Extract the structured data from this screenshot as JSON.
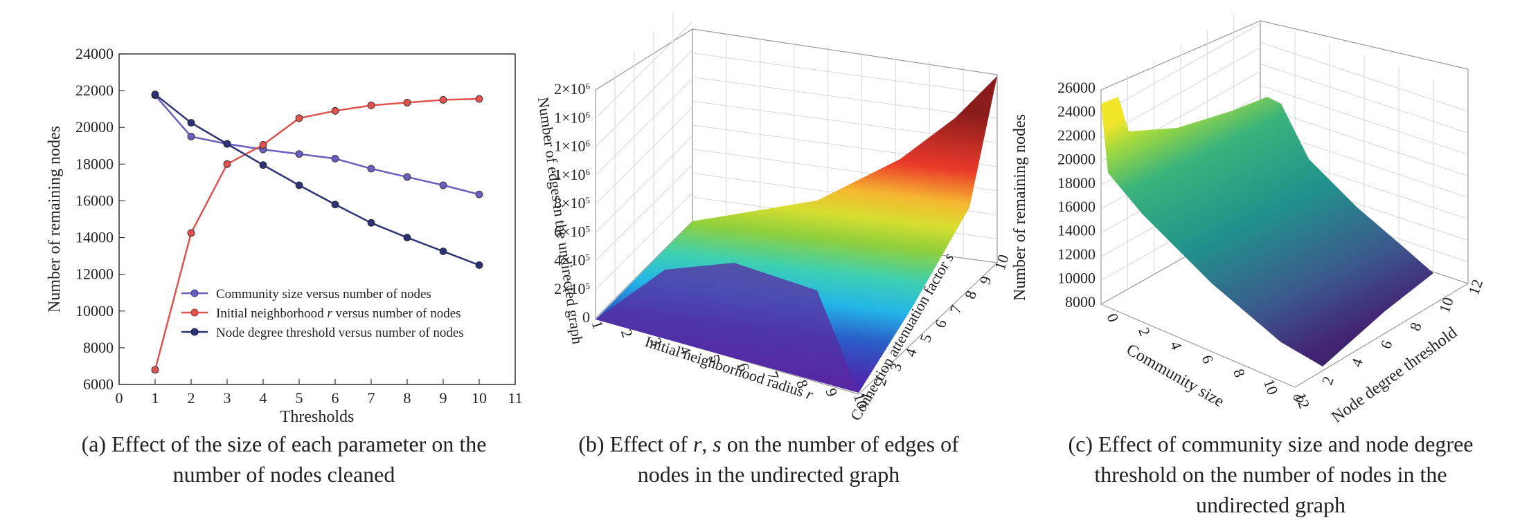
{
  "chart_data": [
    {
      "type": "line",
      "xlabel": "Thresholds",
      "ylabel": "Number of remaining nodes",
      "xlim": [
        0,
        11
      ],
      "ylim": [
        6000,
        24000
      ],
      "xticks": [
        "0",
        "1",
        "2",
        "3",
        "4",
        "5",
        "6",
        "7",
        "8",
        "9",
        "10",
        "11"
      ],
      "yticks": [
        "6000",
        "8000",
        "10000",
        "12000",
        "14000",
        "16000",
        "18000",
        "20000",
        "22000",
        "24000"
      ],
      "x": [
        1,
        2,
        3,
        4,
        5,
        6,
        7,
        8,
        9,
        10
      ],
      "series": [
        {
          "name": "Community size versus number of nodes",
          "color": "#6a5fbf",
          "values": [
            21750,
            19500,
            19100,
            18800,
            18550,
            18300,
            17750,
            17300,
            16850,
            16350
          ]
        },
        {
          "name_pre": "Initial neighborhood ",
          "name_var": "r",
          "name_post": " versus number of nodes",
          "color": "#e0524e",
          "values": [
            6800,
            14250,
            18000,
            19050,
            20500,
            20900,
            21200,
            21350,
            21500,
            21550
          ]
        },
        {
          "name": "Node degree threshold versus number of nodes",
          "color": "#2c3375",
          "values": [
            21800,
            20250,
            19100,
            17950,
            16850,
            15800,
            14800,
            14000,
            13250,
            12500
          ]
        }
      ],
      "legend_position": "lower-right",
      "caption": "(a) Effect of the size of each parameter on the number of nodes cleaned"
    },
    {
      "type": "surface3d",
      "xlabel_pre": "Initial neighborhood radius ",
      "xlabel_var": "r",
      "ylabel_pre": "Connection attenuation factor ",
      "ylabel_var": "s",
      "zlabel": "Number of edges in the undirected graph",
      "xticks": [
        "1",
        "2",
        "3",
        "4",
        "5",
        "6",
        "7",
        "8",
        "9",
        "10"
      ],
      "yticks": [
        "1",
        "2",
        "3",
        "4",
        "5",
        "6",
        "7",
        "8",
        "9",
        "10"
      ],
      "zticks": [
        {
          "b": "0",
          "e": ""
        },
        {
          "b": "2×10",
          "e": "5"
        },
        {
          "b": "4×10",
          "e": "5"
        },
        {
          "b": "6×10",
          "e": "5"
        },
        {
          "b": "8×10",
          "e": "5"
        },
        {
          "b": "1×10",
          "e": "6"
        },
        {
          "b": "1×10",
          "e": "6"
        },
        {
          "b": "1×10",
          "e": "6"
        },
        {
          "b": "2×10",
          "e": "6"
        }
      ],
      "colormap": "jet",
      "caption_l1_pre": "(b) Effect of ",
      "caption_l1_r": "r",
      "caption_l1_mid": ", ",
      "caption_l1_s": "s",
      "caption_l1_post": " on the number of edges of",
      "caption_l2": "nodes  in the undirected graph"
    },
    {
      "type": "surface3d",
      "xlabel": "Community size",
      "ylabel": "Node degree threshold",
      "zlabel": "Number of remaining nodes",
      "xticks": [
        "0",
        "2",
        "4",
        "6",
        "8",
        "10",
        "12"
      ],
      "yticks": [
        "0",
        "2",
        "4",
        "6",
        "8",
        "10",
        "12"
      ],
      "zticks": [
        "8000",
        "10000",
        "12000",
        "14000",
        "16000",
        "18000",
        "20000",
        "22000",
        "24000",
        "26000"
      ],
      "colormap": "viridis",
      "caption_l1": "(c) Effect of community size and node degree",
      "caption_l2": "threshold on the number of nodes  in the",
      "caption_l3": "undirected graph"
    }
  ]
}
